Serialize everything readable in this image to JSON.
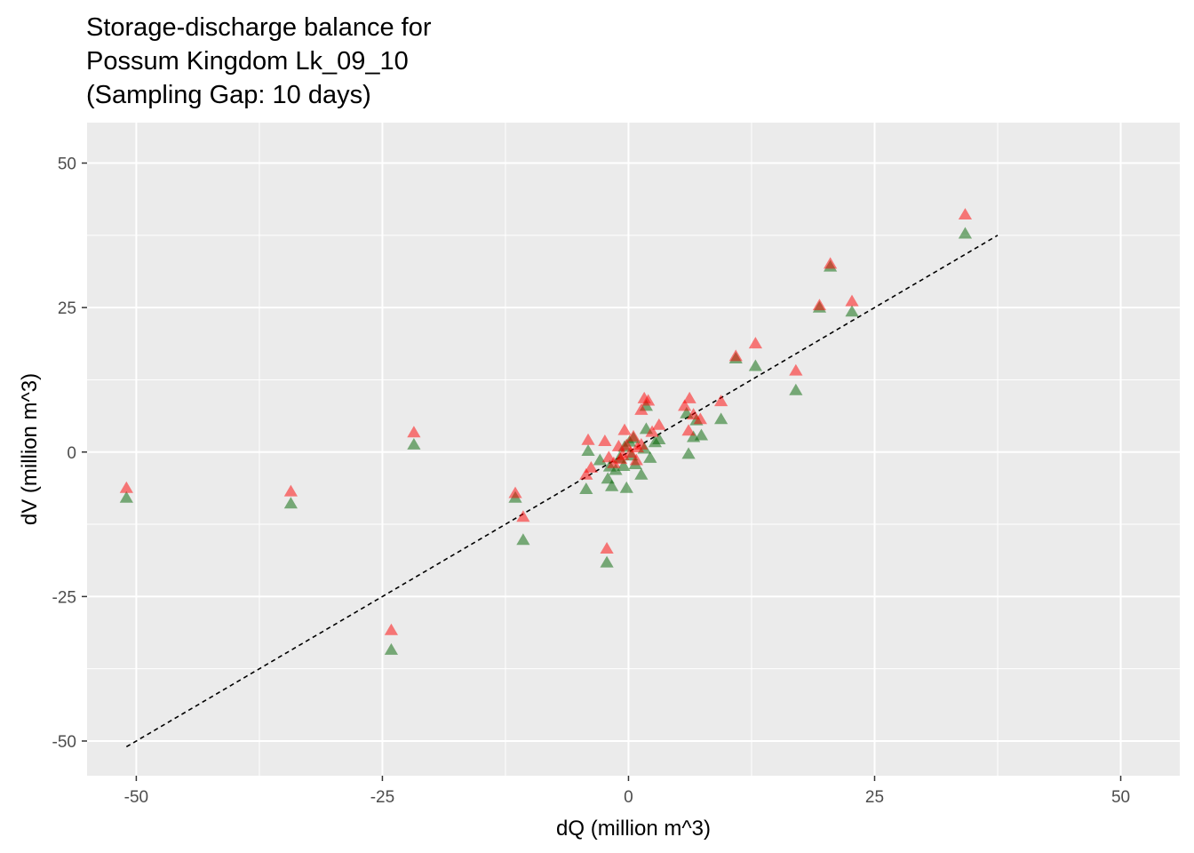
{
  "chart_data": {
    "type": "scatter",
    "title_lines": [
      "Storage-discharge balance for",
      "Possum Kingdom Lk_09_10",
      "(Sampling Gap: 10 days)"
    ],
    "xlabel": "dQ (million m^3)",
    "ylabel": "dV (million m^3)",
    "xlim": [
      -55,
      56
    ],
    "ylim": [
      -56,
      57
    ],
    "x_ticks": [
      -50,
      -25,
      0,
      25,
      50
    ],
    "y_ticks": [
      -50,
      -25,
      0,
      25,
      50
    ],
    "x_tick_labels": [
      "-50",
      "-25",
      "0",
      "25",
      "50"
    ],
    "y_tick_labels": [
      "-50",
      "-25",
      "0",
      "25",
      "50"
    ],
    "grid": true,
    "background_color": "#ebebeb",
    "reference_line": {
      "style": "dashed",
      "color": "#000000",
      "x": [
        -51,
        37.5
      ],
      "y": [
        -51,
        37.5
      ]
    },
    "series": [
      {
        "color": "#006400",
        "marker": "triangle",
        "points": [
          [
            -51,
            -8
          ],
          [
            -34.3,
            -9
          ],
          [
            -21.8,
            1.2
          ],
          [
            -24.1,
            -34.3
          ],
          [
            -11.5,
            -8
          ],
          [
            -10.7,
            -15.3
          ],
          [
            -2.2,
            -19.2
          ],
          [
            -4.3,
            -6.5
          ],
          [
            -4.1,
            0.1
          ],
          [
            -2.9,
            -1.5
          ],
          [
            -2.1,
            -4.7
          ],
          [
            -1.7,
            -6
          ],
          [
            -1.3,
            -3.2
          ],
          [
            -0.9,
            -1.1
          ],
          [
            -0.5,
            -2.5
          ],
          [
            -0.2,
            -6.3
          ],
          [
            0.3,
            -0.7
          ],
          [
            0.7,
            -2.2
          ],
          [
            1.3,
            -4
          ],
          [
            1.6,
            0.5
          ],
          [
            2.2,
            -1.1
          ],
          [
            2.7,
            1.6
          ],
          [
            3.1,
            2.1
          ],
          [
            1.8,
            3.9
          ],
          [
            0.5,
            2.3
          ],
          [
            -0.4,
            0.8
          ],
          [
            0.1,
            1.7
          ],
          [
            -1.9,
            -2.6
          ],
          [
            6.1,
            -0.4
          ],
          [
            6.6,
            2.5
          ],
          [
            7.4,
            2.8
          ],
          [
            6.9,
            5.4
          ],
          [
            9.4,
            5.6
          ],
          [
            5.9,
            6.6
          ],
          [
            1.8,
            7.9
          ],
          [
            10.9,
            16.1
          ],
          [
            12.9,
            14.8
          ],
          [
            17,
            10.6
          ],
          [
            19.4,
            24.9
          ],
          [
            20.5,
            32
          ],
          [
            22.7,
            24.2
          ],
          [
            34.2,
            37.7
          ]
        ]
      },
      {
        "color": "#ff0000",
        "marker": "triangle",
        "points": [
          [
            -51,
            -6.3
          ],
          [
            -34.3,
            -6.9
          ],
          [
            -21.8,
            3.3
          ],
          [
            -24.1,
            -30.9
          ],
          [
            -11.5,
            -7.2
          ],
          [
            -10.7,
            -11.3
          ],
          [
            -2.2,
            -16.8
          ],
          [
            -4.3,
            -4
          ],
          [
            -4.1,
            2
          ],
          [
            -3.8,
            -2.8
          ],
          [
            -2.4,
            1.8
          ],
          [
            -2,
            -1
          ],
          [
            -1.5,
            -2
          ],
          [
            -1,
            0.9
          ],
          [
            -0.6,
            -0.6
          ],
          [
            -0.2,
            1.1
          ],
          [
            0.2,
            -0.2
          ],
          [
            -0.4,
            3.7
          ],
          [
            0.5,
            2.6
          ],
          [
            0.9,
            0.7
          ],
          [
            1.3,
            7.2
          ],
          [
            1.6,
            9.2
          ],
          [
            2,
            8.8
          ],
          [
            2.4,
            3.4
          ],
          [
            3.1,
            4.6
          ],
          [
            1.3,
            1.2
          ],
          [
            0.8,
            -1.5
          ],
          [
            -0.8,
            -1.3
          ],
          [
            5.7,
            7.9
          ],
          [
            6.2,
            9.2
          ],
          [
            6.6,
            6.4
          ],
          [
            7.3,
            5.6
          ],
          [
            6.1,
            3.6
          ],
          [
            9.4,
            8.7
          ],
          [
            10.9,
            16.5
          ],
          [
            12.9,
            18.7
          ],
          [
            17,
            14
          ],
          [
            19.4,
            25.3
          ],
          [
            20.5,
            32.5
          ],
          [
            22.7,
            26
          ],
          [
            34.2,
            41
          ]
        ]
      }
    ]
  }
}
